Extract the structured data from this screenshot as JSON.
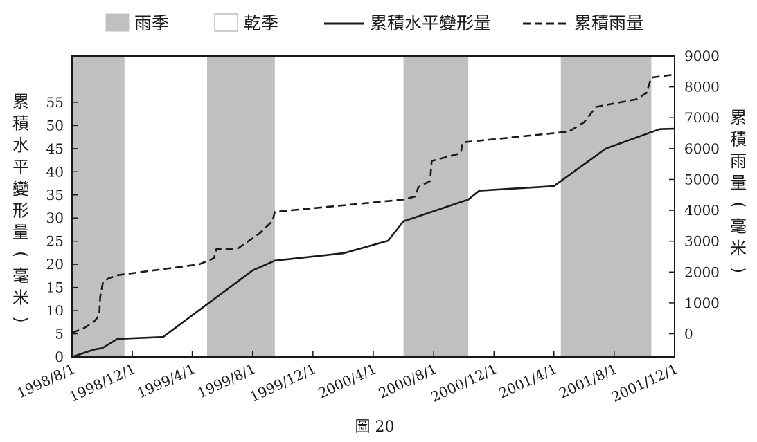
{
  "caption": "圖 20",
  "legend": {
    "rainy_label": "雨季",
    "dry_label": "乾季",
    "deform_label": "累積水平變形量",
    "rain_label": "累積雨量"
  },
  "colors": {
    "rainy_band": "#c0c0c0",
    "dry_band": "#ffffff",
    "line": "#1a1a1a",
    "axis": "#1a1a1a"
  },
  "chart_data": {
    "type": "line",
    "x_axis": {
      "ticks": [
        "1998/8/1",
        "1998/12/1",
        "1999/4/1",
        "1999/8/1",
        "1999/12/1",
        "2000/4/1",
        "2000/8/1",
        "2000/12/1",
        "2001/4/1",
        "2001/8/1",
        "2001/12/1"
      ],
      "range": [
        "1998/8/1",
        "2001/12/1"
      ]
    },
    "y_left": {
      "label": "累積水平變形量（毫米）",
      "ticks": [
        0,
        5,
        10,
        15,
        20,
        25,
        30,
        35,
        40,
        45,
        50,
        55
      ],
      "range": [
        0,
        65
      ]
    },
    "y_right": {
      "label": "累積雨量（毫米）",
      "ticks": [
        0,
        1000,
        2000,
        3000,
        4000,
        5000,
        6000,
        7000,
        8000,
        9000
      ],
      "range": [
        -750,
        9000
      ]
    },
    "bands": [
      {
        "type": "rainy",
        "start": "1998/8/1",
        "end": "1998/11/15"
      },
      {
        "type": "rainy",
        "start": "1999/5/1",
        "end": "1999/9/15"
      },
      {
        "type": "rainy",
        "start": "2000/6/1",
        "end": "2000/10/10"
      },
      {
        "type": "rainy",
        "start": "2001/4/15",
        "end": "2001/10/15"
      }
    ],
    "series": [
      {
        "name": "累積水平變形量",
        "axis": "left",
        "style": "solid",
        "points": [
          [
            "1998/8/1",
            0
          ],
          [
            "1998/9/1",
            1.1
          ],
          [
            "1998/9/15",
            1.6
          ],
          [
            "1998/10/1",
            1.9
          ],
          [
            "1998/11/1",
            3.9
          ],
          [
            "1999/2/1",
            4.3
          ],
          [
            "1999/8/1",
            18.7
          ],
          [
            "1999/9/15",
            20.8
          ],
          [
            "2000/2/1",
            22.4
          ],
          [
            "2000/5/1",
            25.1
          ],
          [
            "2000/6/1",
            29.3
          ],
          [
            "2000/10/10",
            34.0
          ],
          [
            "2000/11/1",
            35.9
          ],
          [
            "2001/4/1",
            36.9
          ],
          [
            "2001/7/15",
            45.0
          ],
          [
            "2001/11/1",
            49.2
          ],
          [
            "2001/12/1",
            49.3
          ]
        ]
      },
      {
        "name": "累積雨量",
        "axis": "right",
        "style": "dashed",
        "points": [
          [
            "1998/8/1",
            30
          ],
          [
            "1998/8/25",
            180
          ],
          [
            "1998/9/15",
            400
          ],
          [
            "1998/9/25",
            600
          ],
          [
            "1998/9/27",
            1200
          ],
          [
            "1998/10/3",
            1700
          ],
          [
            "1998/10/15",
            1800
          ],
          [
            "1998/11/1",
            1900
          ],
          [
            "1999/4/15",
            2250
          ],
          [
            "1999/5/15",
            2450
          ],
          [
            "1999/5/20",
            2750
          ],
          [
            "1999/7/1",
            2750
          ],
          [
            "1999/8/15",
            3250
          ],
          [
            "1999/9/10",
            3650
          ],
          [
            "1999/9/15",
            3950
          ],
          [
            "2000/6/1",
            4350
          ],
          [
            "2000/6/25",
            4450
          ],
          [
            "2000/7/1",
            4750
          ],
          [
            "2000/7/25",
            4950
          ],
          [
            "2000/7/28",
            5600
          ],
          [
            "2000/9/25",
            5850
          ],
          [
            "2000/9/28",
            6200
          ],
          [
            "2001/5/1",
            6550
          ],
          [
            "2001/6/1",
            6850
          ],
          [
            "2001/6/25",
            7350
          ],
          [
            "2001/9/15",
            7600
          ],
          [
            "2001/10/5",
            7800
          ],
          [
            "2001/10/15",
            8300
          ],
          [
            "2001/12/1",
            8400
          ]
        ]
      }
    ],
    "legend_position": "top",
    "grid": false
  }
}
